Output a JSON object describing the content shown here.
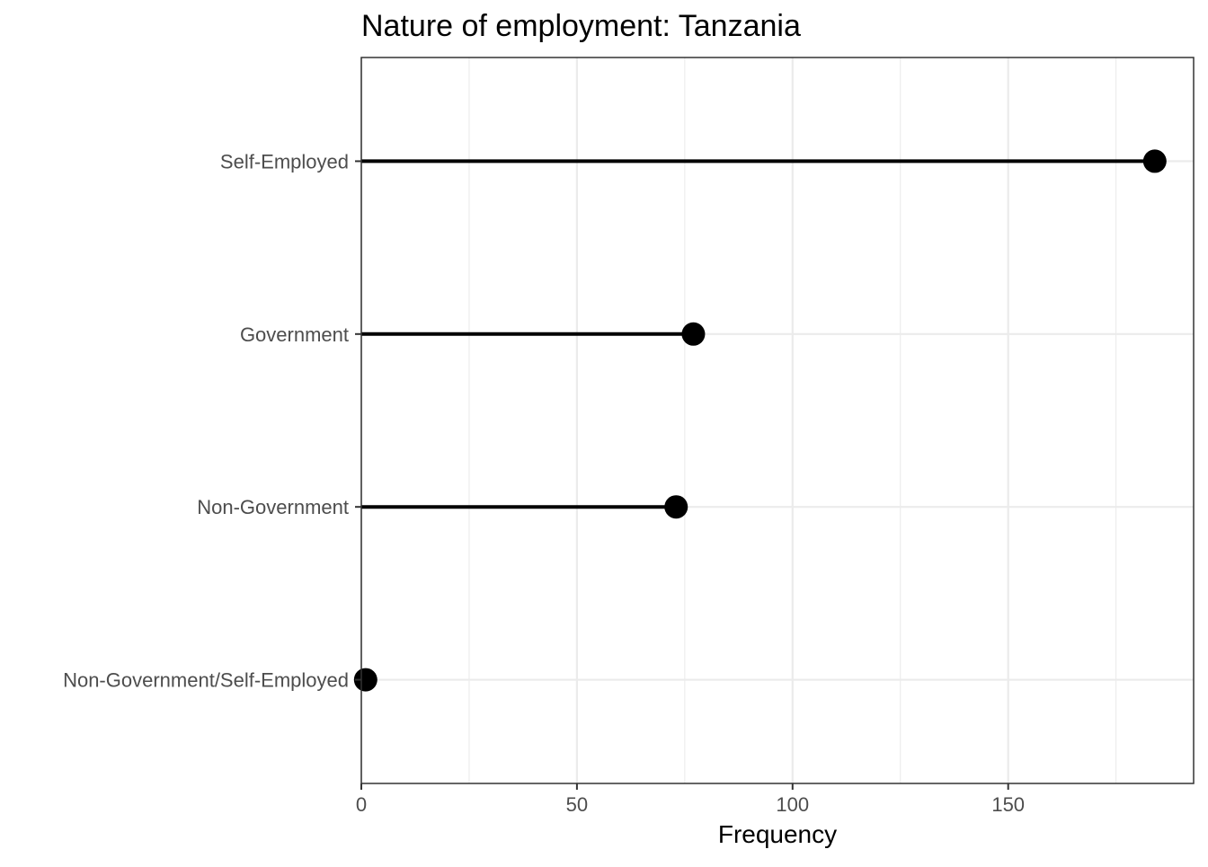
{
  "chart_data": {
    "type": "lollipop",
    "title": "Nature of employment: Tanzania",
    "xlabel": "Frequency",
    "ylabel": "",
    "xlim": [
      0,
      193
    ],
    "x_ticks": [
      0,
      50,
      100,
      150
    ],
    "x_tick_labels": [
      "0",
      "50",
      "100",
      "150"
    ],
    "x_minor_ticks": [
      25,
      75,
      125,
      175
    ],
    "categories": [
      "Self-Employed",
      "Government",
      "Non-Government",
      "Non-Government/Self-Employed"
    ],
    "values": [
      184,
      77,
      73,
      1
    ],
    "grid": true,
    "legend": "none",
    "colors": {
      "mark": "#000000",
      "grid": "#ebebeb",
      "border": "#333333",
      "tick_text": "#4d4d4d"
    }
  }
}
